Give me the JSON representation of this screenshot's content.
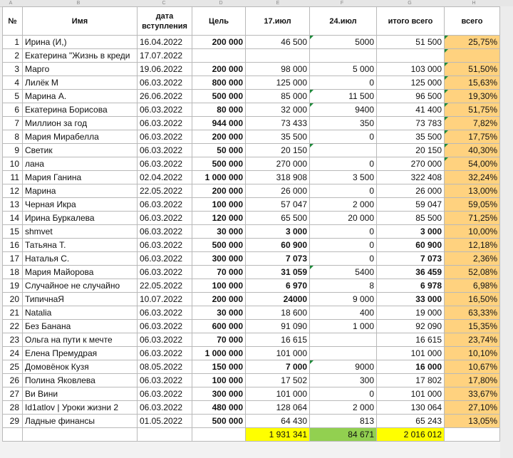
{
  "column_letters": [
    "A",
    "B",
    "C",
    "D",
    "E",
    "F",
    "G",
    "H"
  ],
  "headers": {
    "num": "№",
    "name": "Имя",
    "date": "дата вступления",
    "goal": "Цель",
    "jul17": "17.июл",
    "jul24": "24.июл",
    "total": "итого всего",
    "percent": "всего"
  },
  "colors": {
    "gray": "#d6d6d6",
    "blue": "#1ea7e8",
    "green": "#a9d18e",
    "dark_green": "#4ea72e",
    "orange": "#c55a11",
    "pink": "#fbe4d5",
    "yellow": "#ffff00",
    "tan": "#ffd27f"
  },
  "rows": [
    {
      "n": "1",
      "name": "Ирина (И,)",
      "date": "16.04.2022",
      "goal": "200 000",
      "jul17": "46 500",
      "jul24": "5000",
      "total": "51 500",
      "pct": "25,75%"
    },
    {
      "n": "2",
      "name": "Екатерина \"Жизнь в креди",
      "date": "17.07.2022",
      "goal": "",
      "jul17": "",
      "jul24": "",
      "total": "",
      "pct": ""
    },
    {
      "n": "3",
      "name": "Марго",
      "date": "19.06.2022",
      "goal": "200 000",
      "jul17": "98 000",
      "jul24": "5 000",
      "total": "103 000",
      "pct": "51,50%"
    },
    {
      "n": "4",
      "name": "Лилёк М",
      "date": "06.03.2022",
      "goal": "800 000",
      "jul17": "125 000",
      "jul24": "0",
      "total": "125 000",
      "pct": "15,63%"
    },
    {
      "n": "5",
      "name": "Марина А.",
      "date": "26.06.2022",
      "goal": "500 000",
      "jul17": "85 000",
      "jul24": "11 500",
      "total": "96 500",
      "pct": "19,30%"
    },
    {
      "n": "6",
      "name": "Екатерина Борисова",
      "date": "06.03.2022",
      "goal": "80 000",
      "jul17": "32 000",
      "jul24": "9400",
      "total": "41 400",
      "pct": "51,75%"
    },
    {
      "n": "7",
      "name": "Миллион за год",
      "date": "06.03.2022",
      "goal": "944 000",
      "jul17": "73 433",
      "jul24": "350",
      "total": "73 783",
      "pct": "7,82%"
    },
    {
      "n": "8",
      "name": "Мария Мирабелла",
      "date": "06.03.2022",
      "goal": "200 000",
      "jul17": "35 500",
      "jul24": "0",
      "total": "35 500",
      "pct": "17,75%"
    },
    {
      "n": "9",
      "name": "Светик",
      "date": "06.03.2022",
      "goal": "50 000",
      "jul17": "20 150",
      "jul24": "",
      "total": "20 150",
      "pct": "40,30%"
    },
    {
      "n": "10",
      "name": "лана",
      "date": "06.03.2022",
      "goal": "500 000",
      "jul17": "270 000",
      "jul24": "0",
      "total": "270 000",
      "pct": "54,00%"
    },
    {
      "n": "11",
      "name": "Мария Ганина",
      "date": "02.04.2022",
      "goal": "1 000 000",
      "jul17": "318 908",
      "jul24": "3 500",
      "total": "322 408",
      "pct": "32,24%"
    },
    {
      "n": "12",
      "name": "Марина",
      "date": "22.05.2022",
      "goal": "200 000",
      "jul17": "26 000",
      "jul24": "0",
      "total": "26 000",
      "pct": "13,00%"
    },
    {
      "n": "13",
      "name": "Черная Икра",
      "date": "06.03.2022",
      "goal": "100 000",
      "jul17": "57 047",
      "jul24": "2 000",
      "total": "59 047",
      "pct": "59,05%"
    },
    {
      "n": "14",
      "name": "Ирина Буркалева",
      "date": "06.03.2022",
      "goal": "120 000",
      "jul17": "65 500",
      "jul24": "20 000",
      "total": "85 500",
      "pct": "71,25%"
    },
    {
      "n": "15",
      "name": "shmvet",
      "date": "06.03.2022",
      "goal": "30 000",
      "jul17": "3 000",
      "jul24": "0",
      "total": "3 000",
      "pct": "10,00%"
    },
    {
      "n": "16",
      "name": "Татьяна Т.",
      "date": "06.03.2022",
      "goal": "500 000",
      "jul17": "60 900",
      "jul24": "0",
      "total": "60 900",
      "pct": "12,18%"
    },
    {
      "n": "17",
      "name": "Наталья С.",
      "date": "06.03.2022",
      "goal": "300 000",
      "jul17": "7 073",
      "jul24": "0",
      "total": "7 073",
      "pct": "2,36%"
    },
    {
      "n": "18",
      "name": "Мария Майорова",
      "date": "06.03.2022",
      "goal": "70 000",
      "jul17": "31 059",
      "jul24": "5400",
      "total": "36 459",
      "pct": "52,08%"
    },
    {
      "n": "19",
      "name": " Случайное не случайно",
      "date": "22.05.2022",
      "goal": "100 000",
      "jul17": "6 970",
      "jul24": "8",
      "total": "6 978",
      "pct": "6,98%"
    },
    {
      "n": "20",
      "name": "ТипичнаЯ",
      "date": "10.07.2022",
      "goal": "200 000",
      "jul17": "24000",
      "jul24": "9 000",
      "total": "33 000",
      "pct": "16,50%"
    },
    {
      "n": "21",
      "name": "Natalia",
      "date": "06.03.2022",
      "goal": "30 000",
      "jul17": "18 600",
      "jul24": "400",
      "total": "19 000",
      "pct": "63,33%"
    },
    {
      "n": "22",
      "name": "Без Банана",
      "date": "06.03.2022",
      "goal": "600 000",
      "jul17": "91 090",
      "jul24": "1 000",
      "total": "92 090",
      "pct": "15,35%"
    },
    {
      "n": "23",
      "name": "Ольга на пути к мечте",
      "date": "06.03.2022",
      "goal": "70 000",
      "jul17": "16 615",
      "jul24": "",
      "total": "16 615",
      "pct": "23,74%"
    },
    {
      "n": "24",
      "name": "Елена Премудрая",
      "date": "06.03.2022",
      "goal": "1 000 000",
      "jul17": "101 000",
      "jul24": "",
      "total": "101 000",
      "pct": "10,10%"
    },
    {
      "n": "25",
      "name": " Домовёнок Кузя",
      "date": "08.05.2022",
      "goal": "150 000",
      "jul17": "7 000",
      "jul24": "9000",
      "total": "16 000",
      "pct": "10,67%"
    },
    {
      "n": "26",
      "name": "Полина Яковлева",
      "date": "06.03.2022",
      "goal": "100 000",
      "jul17": "17 502",
      "jul24": "300",
      "total": "17 802",
      "pct": "17,80%"
    },
    {
      "n": "27",
      "name": "Ви Вини",
      "date": "06.03.2022",
      "goal": "300 000",
      "jul17": "101 000",
      "jul24": "0",
      "total": "101 000",
      "pct": "33,67%"
    },
    {
      "n": "28",
      "name": "Id1atlov |  Уроки жизни 2",
      "date": "06.03.2022",
      "goal": "480 000",
      "jul17": "128 064",
      "jul24": "2 000",
      "total": "130 064",
      "pct": "27,10%"
    },
    {
      "n": "29",
      "name": "Ладные финансы",
      "date": "01.05.2022",
      "goal": "500 000",
      "jul17": "64 430",
      "jul24": "813",
      "total": "65 243",
      "pct": "13,05%"
    }
  ],
  "totals": {
    "jul17": "1 931 341",
    "jul24": "84 671",
    "total": "2 016 012"
  }
}
